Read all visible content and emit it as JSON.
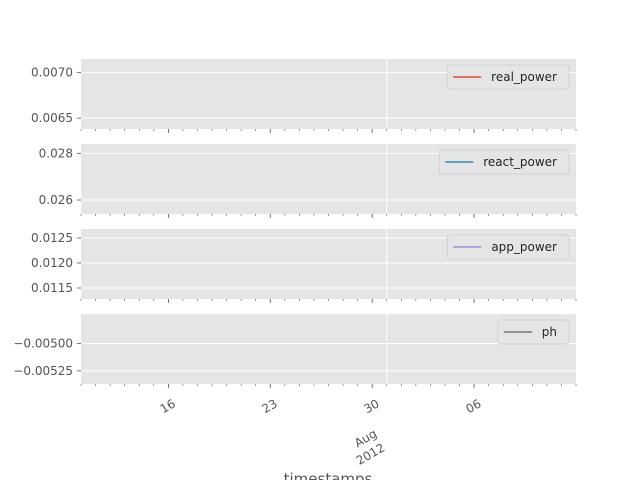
{
  "chart_data": [
    {
      "type": "line",
      "series": [
        {
          "name": "real_power",
          "color": "#e24a33",
          "values": []
        }
      ],
      "yticks": [
        {
          "value": 0.0065,
          "label": "0.0065"
        },
        {
          "value": 0.007,
          "label": "0.0070"
        }
      ],
      "ylim": [
        0.00638,
        0.00715
      ],
      "legend": "top-right",
      "grid": true
    },
    {
      "type": "line",
      "series": [
        {
          "name": "react_power",
          "color": "#348abd",
          "values": []
        }
      ],
      "yticks": [
        {
          "value": 0.026,
          "label": "0.026"
        },
        {
          "value": 0.028,
          "label": "0.028"
        }
      ],
      "ylim": [
        0.0254,
        0.0284
      ],
      "legend": "top-right",
      "grid": true
    },
    {
      "type": "line",
      "series": [
        {
          "name": "app_power",
          "color": "#988ed5",
          "values": []
        }
      ],
      "yticks": [
        {
          "value": 0.0115,
          "label": "0.0115"
        },
        {
          "value": 0.012,
          "label": "0.0120"
        },
        {
          "value": 0.0125,
          "label": "0.0125"
        }
      ],
      "ylim": [
        0.01128,
        0.01268
      ],
      "legend": "top-right",
      "grid": true
    },
    {
      "type": "line",
      "series": [
        {
          "name": "ph",
          "color": "#777777",
          "values": []
        }
      ],
      "yticks": [
        {
          "value": -0.00525,
          "label": "−0.00525"
        },
        {
          "value": -0.005,
          "label": "−0.00500"
        }
      ],
      "ylim": [
        -0.00537,
        -0.00473
      ],
      "legend": "top-right",
      "grid": true
    }
  ],
  "shared_x": {
    "xlabel": "timestamps",
    "xlim": [
      "2012-07-10",
      "2012-08-13"
    ],
    "major_ticks": [
      {
        "date": "2012-07-16",
        "label": "16"
      },
      {
        "date": "2012-07-23",
        "label": "23"
      },
      {
        "date": "2012-07-30",
        "label": "30"
      },
      {
        "date": "2012-08-06",
        "label": "06"
      }
    ],
    "gridline_date": "2012-07-31",
    "month_label": "Aug",
    "year_label": "2012"
  },
  "colors": {
    "axes_bg": "#e5e5e5",
    "grid": "#ffffff",
    "tick": "#555555"
  }
}
